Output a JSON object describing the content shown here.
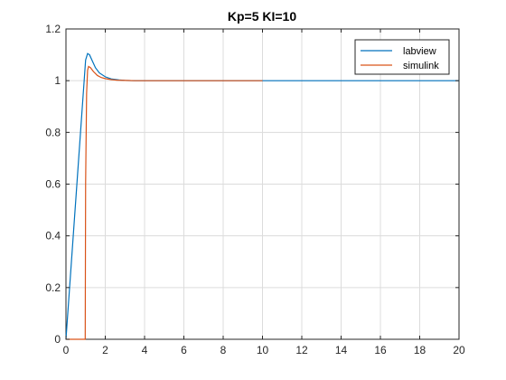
{
  "chart_data": {
    "type": "line",
    "title": "Kp=5 KI=10",
    "xlabel": "",
    "ylabel": "",
    "xlim": [
      0,
      20
    ],
    "ylim": [
      0,
      1.2
    ],
    "xticks": [
      0,
      2,
      4,
      6,
      8,
      10,
      12,
      14,
      16,
      18,
      20
    ],
    "yticks": [
      0,
      0.2,
      0.4,
      0.6,
      0.8,
      1,
      1.2
    ],
    "xtick_labels": [
      "0",
      "2",
      "4",
      "6",
      "8",
      "10",
      "12",
      "14",
      "16",
      "18",
      "20"
    ],
    "ytick_labels": [
      "0",
      "0.2",
      "0.4",
      "0.6",
      "0.8",
      "1",
      "1.2"
    ],
    "grid": true,
    "legend_position": "top-right",
    "series": [
      {
        "name": "labview",
        "color": "#0072BD",
        "x": [
          0,
          0.25,
          0.5,
          0.75,
          1.0,
          1.1,
          1.2,
          1.35,
          1.5,
          1.7,
          2.0,
          2.3,
          2.7,
          3.0,
          3.5,
          4.0,
          5.0,
          6.0,
          8.0,
          10.0,
          12.0,
          14.0,
          16.0,
          18.0,
          20.0
        ],
        "y": [
          0,
          0.27,
          0.54,
          0.81,
          1.08,
          1.105,
          1.1,
          1.075,
          1.05,
          1.03,
          1.015,
          1.007,
          1.003,
          1.001,
          1.0,
          1.0,
          1.0,
          1.0,
          1.0,
          1.0,
          1.0,
          1.0,
          1.0,
          1.0,
          1.0
        ]
      },
      {
        "name": "simulink",
        "color": "#D95319",
        "x": [
          0,
          0.98,
          1.0,
          1.05,
          1.1,
          1.15,
          1.25,
          1.4,
          1.6,
          1.8,
          2.0,
          2.3,
          2.6,
          3.0,
          3.5,
          4.0,
          5.0,
          6.0,
          8.0,
          10.0
        ],
        "y": [
          0,
          0,
          0.6,
          0.95,
          1.04,
          1.055,
          1.05,
          1.035,
          1.02,
          1.012,
          1.008,
          1.004,
          1.002,
          1.001,
          1.0,
          1.0,
          1.0,
          1.0,
          1.0,
          1.0
        ]
      }
    ]
  }
}
